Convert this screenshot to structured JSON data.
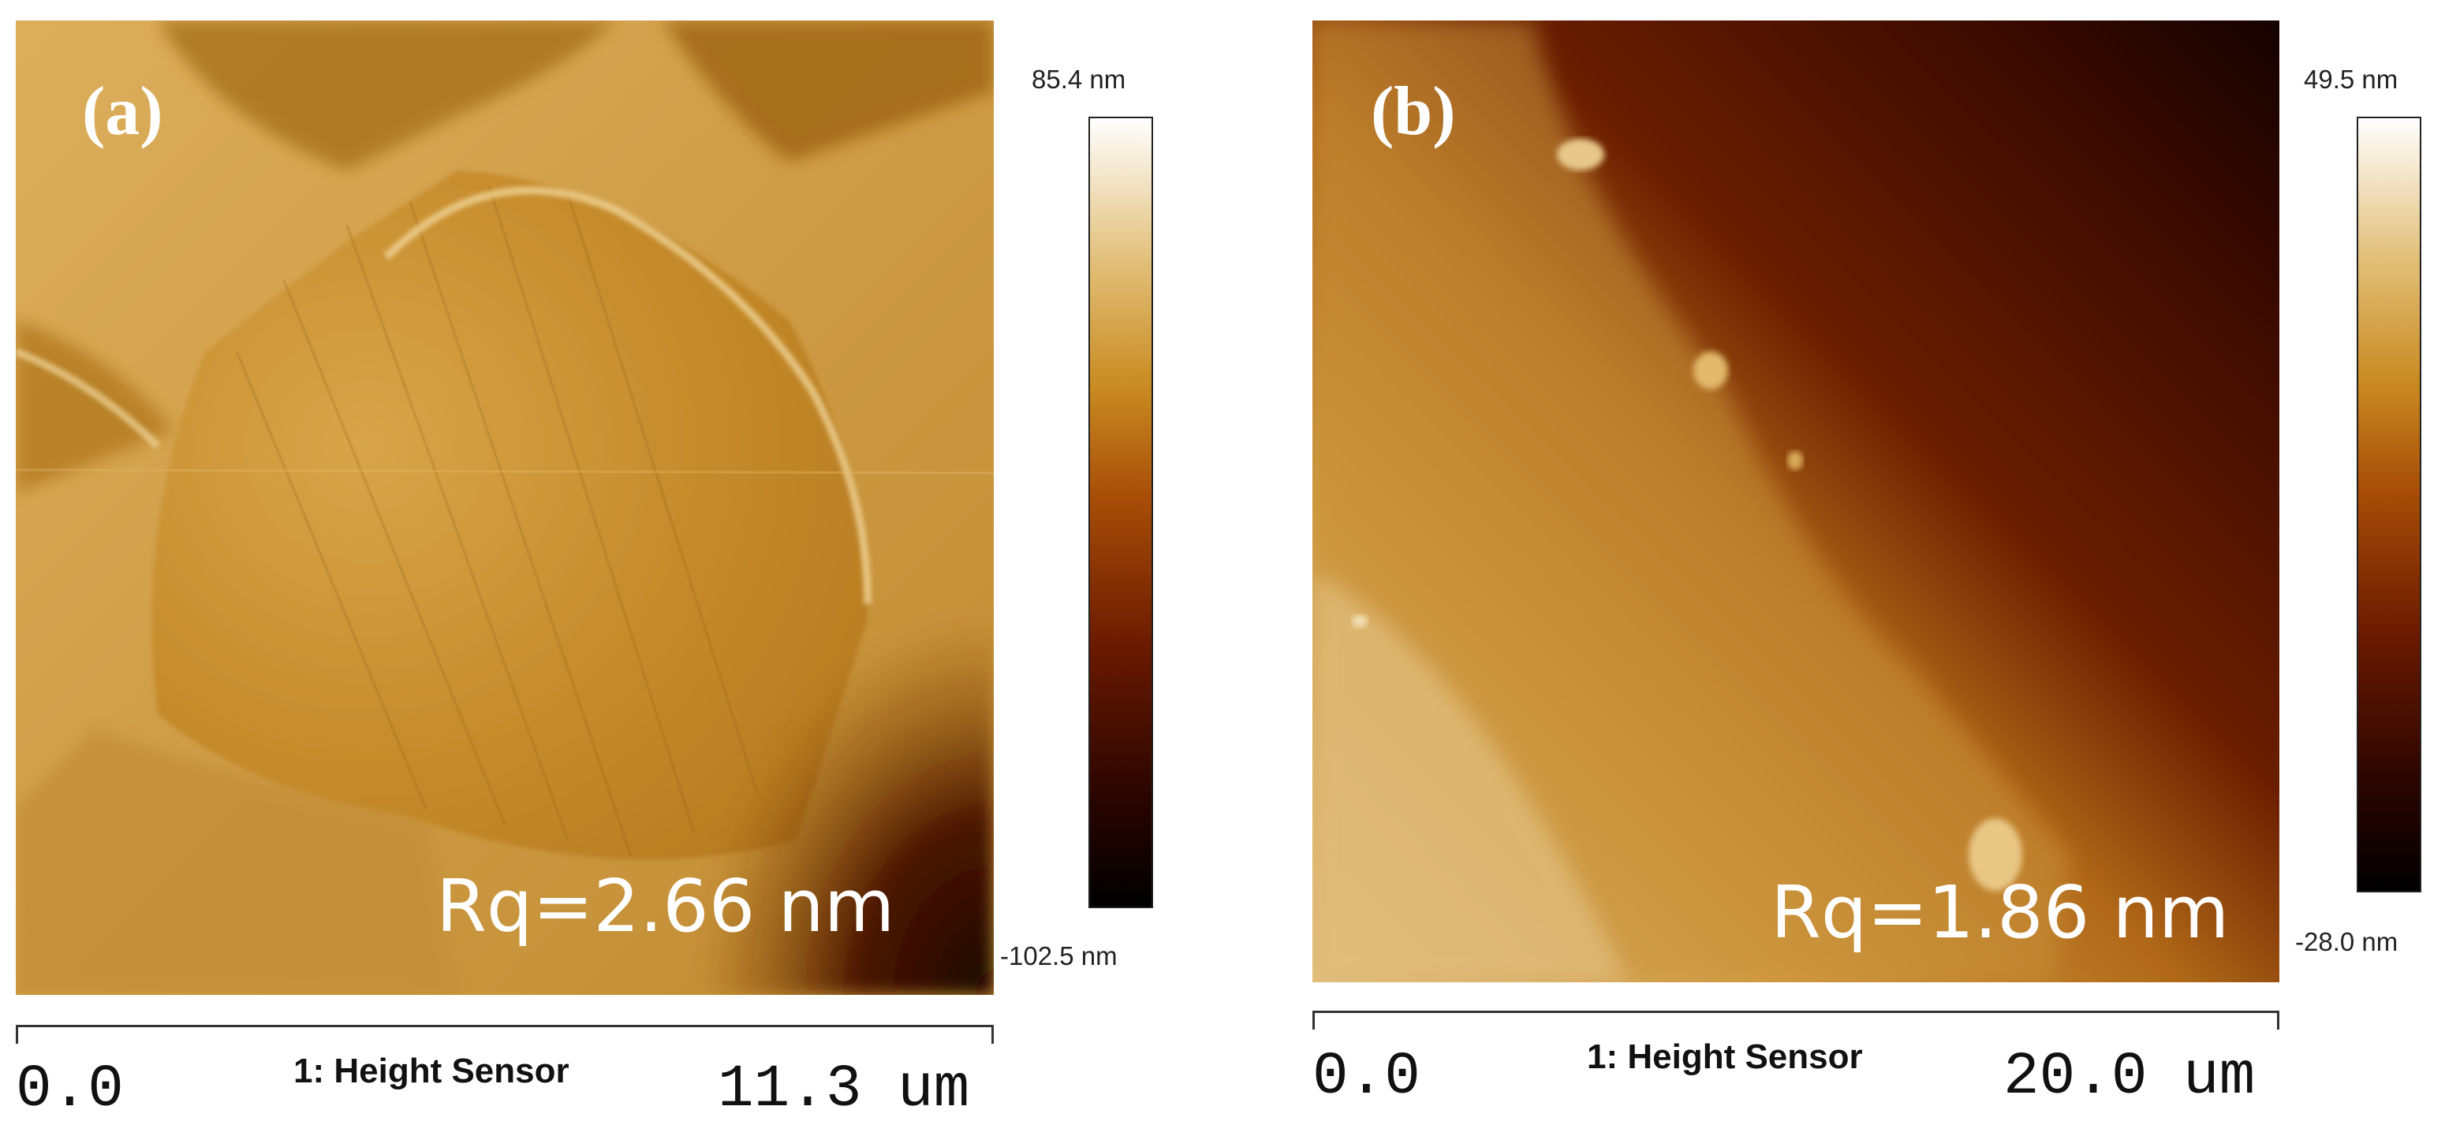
{
  "panels": [
    {
      "letter": "(a)",
      "roughness": "Rq=2.66 nm",
      "colorbar": {
        "max_label": "85.4 nm",
        "min_label": "-102.5 nm"
      },
      "scale": {
        "start": "0.0",
        "end": "11.3 um",
        "channel": "1: Height Sensor"
      }
    },
    {
      "letter": "(b)",
      "roughness": "Rq=1.86 nm",
      "colorbar": {
        "max_label": "49.5 nm",
        "min_label": "-28.0 nm"
      },
      "scale": {
        "start": "0.0",
        "end": "20.0 um",
        "channel": "1: Height Sensor"
      }
    }
  ],
  "colormap": [
    "#000000",
    "#2a0500",
    "#6a1a00",
    "#a84e08",
    "#c98b22",
    "#e2c07a",
    "#ffffff"
  ]
}
